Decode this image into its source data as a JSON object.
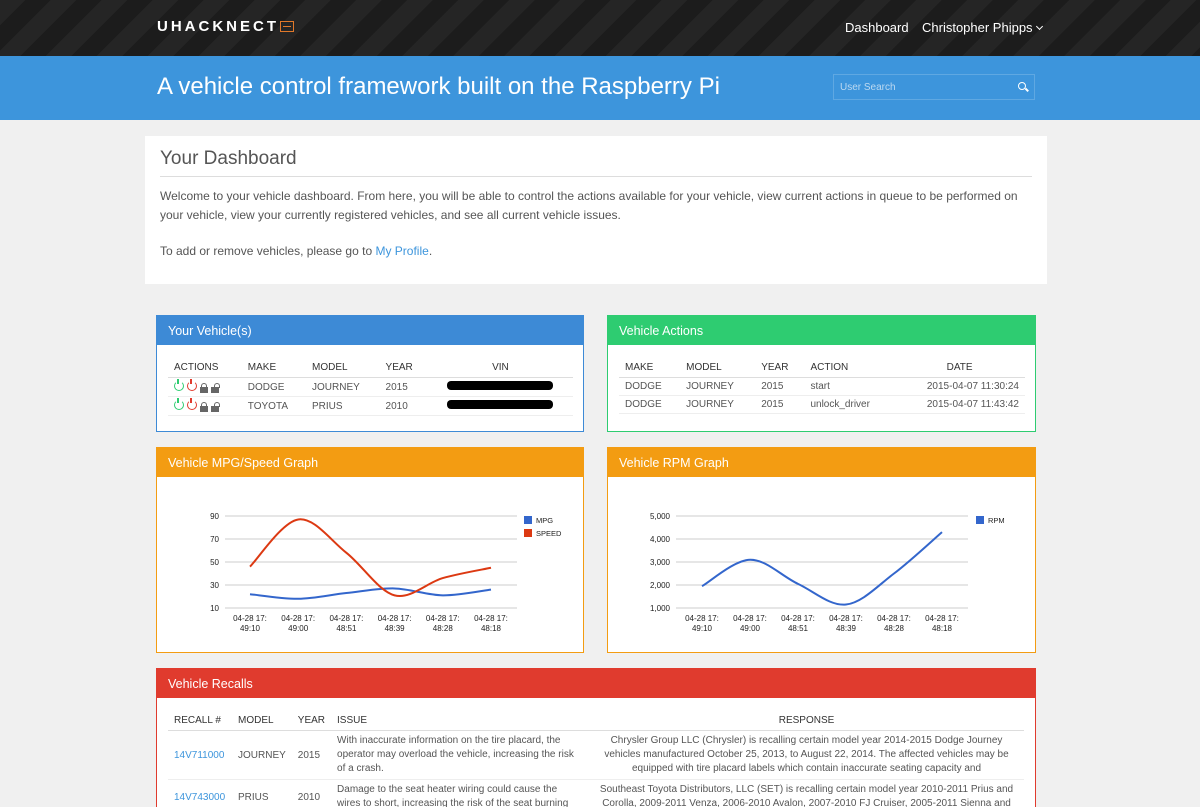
{
  "nav": {
    "brand": "UHACKNECT",
    "dashboard_link": "Dashboard",
    "user_name": "Christopher Phipps"
  },
  "header": {
    "tagline": "A vehicle control framework built on the Raspberry Pi",
    "search_placeholder": "User Search"
  },
  "welcome": {
    "title": "Your Dashboard",
    "body": "Welcome to your vehicle dashboard. From here, you will be able to control the actions available for your vehicle, view current actions in queue to be performed on your vehicle, view your currently registered vehicles, and see all current vehicle issues.",
    "profile_prefix": "To add or remove vehicles, please go to ",
    "profile_link": "My Profile",
    "profile_suffix": "."
  },
  "vehicles": {
    "title": "Your Vehicle(s)",
    "headers": [
      "ACTIONS",
      "MAKE",
      "MODEL",
      "YEAR",
      "VIN"
    ],
    "rows": [
      {
        "make": "DODGE",
        "model": "JOURNEY",
        "year": "2015"
      },
      {
        "make": "TOYOTA",
        "model": "PRIUS",
        "year": "2010"
      }
    ]
  },
  "actions": {
    "title": "Vehicle Actions",
    "headers": [
      "MAKE",
      "MODEL",
      "YEAR",
      "ACTION",
      "DATE"
    ],
    "rows": [
      {
        "make": "DODGE",
        "model": "JOURNEY",
        "year": "2015",
        "action": "start",
        "date": "2015-04-07 11:30:24"
      },
      {
        "make": "DODGE",
        "model": "JOURNEY",
        "year": "2015",
        "action": "unlock_driver",
        "date": "2015-04-07 11:43:42"
      }
    ]
  },
  "mpg_panel": {
    "title": "Vehicle MPG/Speed Graph"
  },
  "rpm_panel": {
    "title": "Vehicle RPM Graph"
  },
  "chart_data": [
    {
      "type": "line",
      "categories": [
        "04-28 17:49:10",
        "04-28 17:49:00",
        "04-28 17:48:51",
        "04-28 17:48:39",
        "04-28 17:48:28",
        "04-28 17:48:18"
      ],
      "category_lines": [
        [
          "04-28 17:",
          "49:10"
        ],
        [
          "04-28 17:",
          "49:00"
        ],
        [
          "04-28 17:",
          "48:51"
        ],
        [
          "04-28 17:",
          "48:39"
        ],
        [
          "04-28 17:",
          "48:28"
        ],
        [
          "04-28 17:",
          "48:18"
        ]
      ],
      "yticks": [
        10,
        30,
        50,
        70,
        90
      ],
      "ylim": [
        10,
        90
      ],
      "series": [
        {
          "name": "MPG",
          "color": "#3366cc",
          "values": [
            22,
            18,
            23,
            27,
            21,
            26
          ]
        },
        {
          "name": "SPEED",
          "color": "#dc3912",
          "values": [
            46,
            87,
            58,
            21,
            36,
            45
          ]
        }
      ],
      "legend": "right"
    },
    {
      "type": "line",
      "categories": [
        "04-28 17:49:10",
        "04-28 17:49:00",
        "04-28 17:48:51",
        "04-28 17:48:39",
        "04-28 17:48:28",
        "04-28 17:48:18"
      ],
      "category_lines": [
        [
          "04-28 17:",
          "49:10"
        ],
        [
          "04-28 17:",
          "49:00"
        ],
        [
          "04-28 17:",
          "48:51"
        ],
        [
          "04-28 17:",
          "48:39"
        ],
        [
          "04-28 17:",
          "48:28"
        ],
        [
          "04-28 17:",
          "48:18"
        ]
      ],
      "yticks": [
        "1,000",
        "2,000",
        "3,000",
        "4,000",
        "5,000"
      ],
      "ylim": [
        1000,
        5000
      ],
      "series": [
        {
          "name": "RPM",
          "color": "#3366cc",
          "values": [
            1950,
            3100,
            2050,
            1150,
            2500,
            4300
          ]
        }
      ],
      "legend": "right"
    }
  ],
  "recalls": {
    "title": "Vehicle Recalls",
    "headers": [
      "RECALL #",
      "MODEL",
      "YEAR",
      "ISSUE",
      "RESPONSE"
    ],
    "rows": [
      {
        "recall": "14V711000",
        "model": "JOURNEY",
        "year": "2015",
        "issue": "With inaccurate information on the tire placard, the operator may overload the vehicle, increasing the risk of a crash.",
        "response": "Chrysler Group LLC (Chrysler) is recalling certain model year 2014-2015 Dodge Journey vehicles manufactured October 25, 2013, to August 22, 2014. The affected vehicles may be equipped with tire placard labels which contain inaccurate seating capacity and"
      },
      {
        "recall": "14V743000",
        "model": "PRIUS",
        "year": "2010",
        "issue": "Damage to the seat heater wiring could cause the wires to short, increasing the risk of the seat burning",
        "response": "Southeast Toyota Distributors, LLC (SET) is recalling certain model year 2010-2011 Prius and Corolla, 2009-2011 Venza, 2006-2010 Avalon, 2007-2010 FJ Cruiser, 2005-2011 Sienna and"
      }
    ]
  }
}
